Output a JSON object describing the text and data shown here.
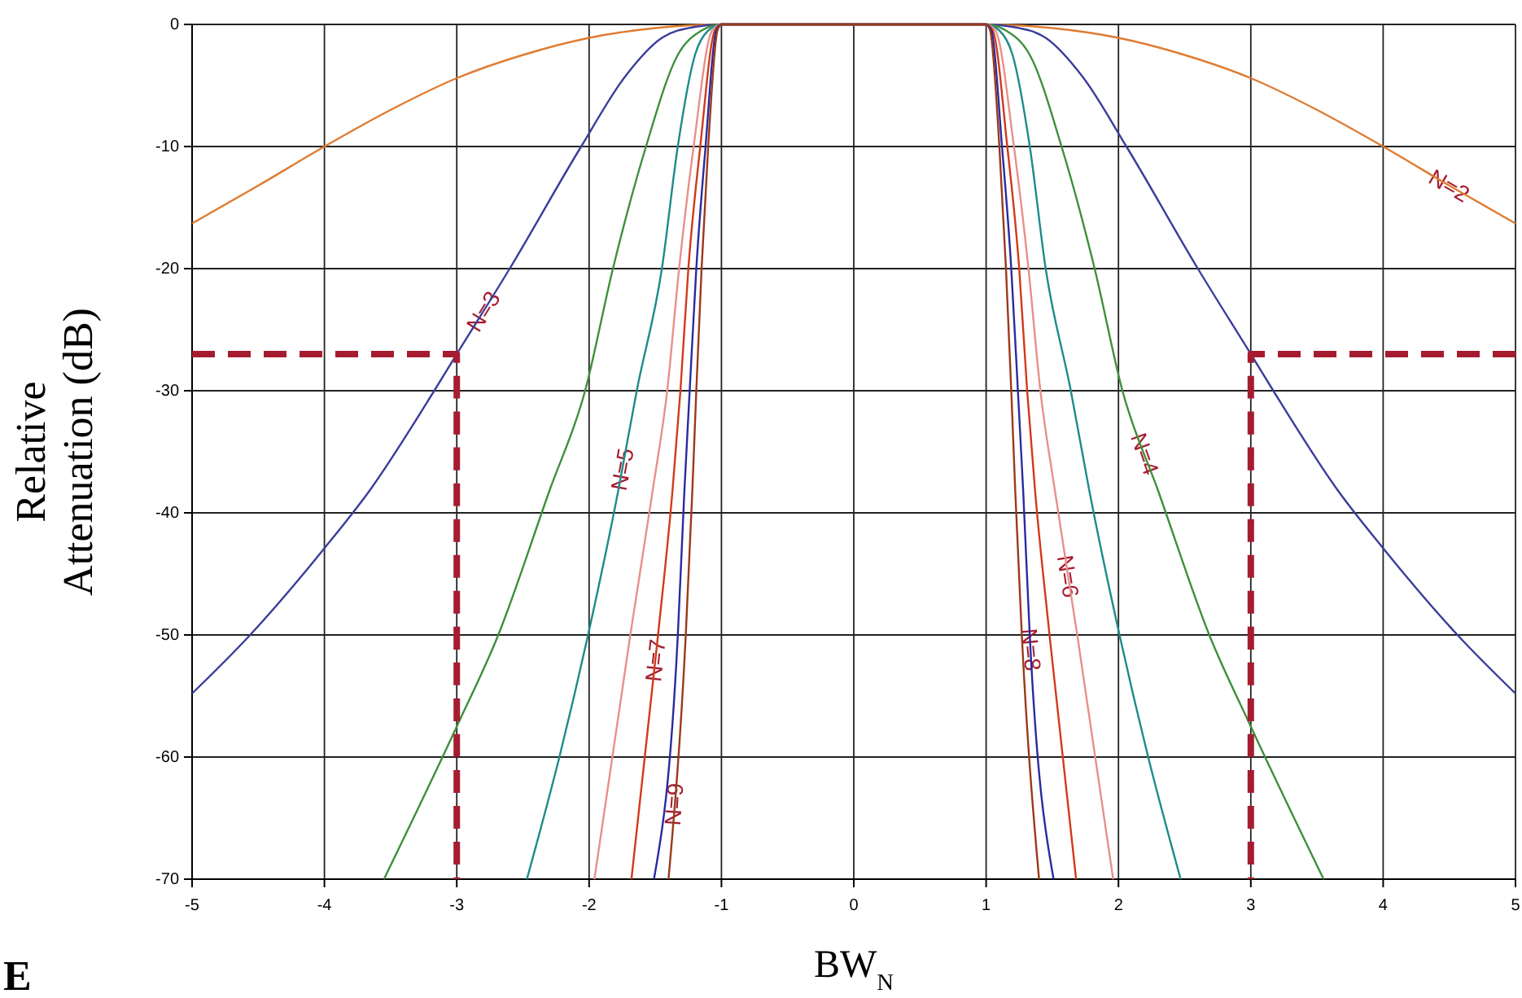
{
  "chart_data": {
    "type": "line",
    "xlabel": "BW$_{N}$",
    "ylabel": "Relative\nAttenuation (dB)",
    "annotations": [
      "E"
    ],
    "xlim": [
      -5,
      5
    ],
    "ylim": [
      -70,
      0
    ],
    "xticks": [
      -5,
      -4,
      -3,
      -2,
      -1,
      0,
      1,
      2,
      3,
      4,
      5
    ],
    "yticks": [
      0,
      -10,
      -20,
      -30,
      -40,
      -50,
      -60,
      -70
    ],
    "grid": true,
    "line_style": "solid",
    "marker": "none",
    "series": [
      {
        "name": "N=2",
        "color": "#e07b30",
        "x": [
          -5,
          -4.5,
          -4,
          -3.5,
          -3,
          -2.5,
          -2,
          -1.5,
          -1,
          1,
          1.5,
          2,
          2.5,
          3,
          3.5,
          4,
          4.5,
          5
        ],
        "values": [
          -16.3,
          -13.2,
          -10,
          -7,
          -4.4,
          -2.5,
          -1.1,
          -0.3,
          0,
          0,
          -0.3,
          -1.1,
          -2.5,
          -4.4,
          -7,
          -10,
          -13.2,
          -16.3
        ]
      },
      {
        "name": "N=3",
        "color": "#3a3d9a",
        "x": [
          -5,
          -4.57,
          -4,
          -3.66,
          -3.17,
          -3,
          -2.6,
          -2.06,
          -1.73,
          -1.45,
          -1.2,
          -1,
          1,
          1.2,
          1.45,
          1.73,
          2.06,
          2.6,
          3,
          3.17,
          3.66,
          4,
          4.57,
          5
        ],
        "values": [
          -54.8,
          -50.1,
          -42.9,
          -38.2,
          -30,
          -27,
          -20,
          -10,
          -4.3,
          -1.1,
          -0.2,
          0,
          0,
          -0.2,
          -1.1,
          -4.3,
          -10,
          -20,
          -27,
          -30,
          -38.2,
          -42.9,
          -50.1,
          -54.8
        ]
      },
      {
        "name": "N=4",
        "color": "#3f8f3a",
        "x": [
          -3.55,
          -3,
          -2.69,
          -2.3,
          -2.03,
          -1.82,
          -1.57,
          -1.33,
          -1.15,
          -1,
          1,
          1.15,
          1.33,
          1.57,
          1.82,
          2.03,
          2.3,
          2.69,
          3,
          3.55
        ],
        "values": [
          -70,
          -57.5,
          -50.1,
          -38.2,
          -30,
          -20,
          -10,
          -2.5,
          -0.5,
          0,
          0,
          -0.5,
          -2.5,
          -10,
          -20,
          -30,
          -38.2,
          -50.1,
          -57.5,
          -70
        ]
      },
      {
        "name": "N=5",
        "color": "#1f8a8a",
        "x": [
          -2.47,
          -2.22,
          -2.01,
          -1.78,
          -1.64,
          -1.45,
          -1.33,
          -1.2,
          -1.1,
          -1,
          1,
          1.1,
          1.2,
          1.33,
          1.45,
          1.64,
          1.78,
          2.01,
          2.22,
          2.47
        ],
        "values": [
          -70,
          -59.8,
          -50.1,
          -38.2,
          -30,
          -20,
          -10,
          -2.5,
          -0.5,
          0,
          0,
          -0.5,
          -2.5,
          -10,
          -20,
          -30,
          -38.2,
          -50.1,
          -59.8,
          -70
        ]
      },
      {
        "name": "N=6",
        "color": "#e8908a",
        "x": [
          -1.96,
          -1.69,
          -1.52,
          -1.41,
          -1.32,
          -1.21,
          -1.07,
          -1,
          1,
          1.07,
          1.21,
          1.32,
          1.41,
          1.52,
          1.69,
          1.96
        ],
        "values": [
          -70,
          -50.1,
          -38.2,
          -30,
          -20,
          -10,
          -0.5,
          0,
          0,
          -0.5,
          -10,
          -20,
          -30,
          -38.2,
          -50.1,
          -70
        ]
      },
      {
        "name": "N=7",
        "color": "#d13a1a",
        "x": [
          -1.68,
          -1.48,
          -1.37,
          -1.31,
          -1.25,
          -1.16,
          -1.05,
          -1,
          1,
          1.05,
          1.16,
          1.25,
          1.31,
          1.37,
          1.48,
          1.68
        ],
        "values": [
          -70,
          -50.1,
          -38.2,
          -30,
          -20,
          -10,
          -0.5,
          0,
          0,
          -0.5,
          -10,
          -20,
          -30,
          -38.2,
          -50.1,
          -70
        ]
      },
      {
        "name": "N=8",
        "color": "#2a2aa0",
        "x": [
          -1.51,
          -1.33,
          -1.28,
          -1.24,
          -1.19,
          -1.12,
          -1.04,
          -1,
          1,
          1.04,
          1.12,
          1.19,
          1.24,
          1.28,
          1.33,
          1.51
        ],
        "values": [
          -70,
          -50.1,
          -38.2,
          -30,
          -20,
          -10,
          -0.5,
          0,
          0,
          -0.5,
          -10,
          -20,
          -30,
          -38.2,
          -50.1,
          -70
        ]
      },
      {
        "name": "N=9",
        "color": "#9a3a1a",
        "x": [
          -1.4,
          -1.27,
          -1.22,
          -1.19,
          -1.15,
          -1.1,
          -1.03,
          -1,
          1,
          1.03,
          1.1,
          1.15,
          1.19,
          1.22,
          1.27,
          1.4
        ],
        "values": [
          -70,
          -50.1,
          -38.2,
          -30,
          -20,
          -10,
          -0.5,
          0,
          0,
          -0.5,
          -10,
          -20,
          -30,
          -38.2,
          -50.1,
          -70
        ]
      },
      {
        "color": "#a51c30",
        "line_style": "dashed",
        "x": [
          -5,
          -3,
          -3
        ],
        "values": [
          -27,
          -27,
          -70
        ]
      },
      {
        "color": "#a51c30",
        "line_style": "dashed",
        "x": [
          5,
          3,
          3
        ],
        "values": [
          -27,
          -27,
          -70
        ]
      }
    ]
  }
}
